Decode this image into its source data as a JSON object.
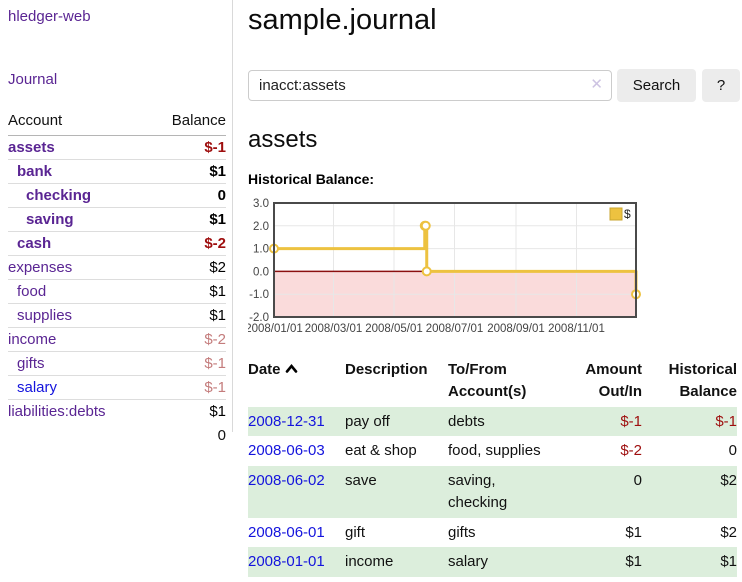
{
  "app_title": "hledger-web",
  "nav": {
    "journal_label": "Journal"
  },
  "colors": {
    "link_purple": "#5a2593",
    "link_blue": "#1414dd",
    "negative_strong": "#9e0e0e",
    "negative_faded": "#c47c7c",
    "row_stripe_green": "#dceedc",
    "button_bg": "#ececec",
    "chart_line_gold": "#edc240"
  },
  "sidebar": {
    "columns": {
      "account": "Account",
      "balance": "Balance"
    },
    "accounts": [
      {
        "name": "assets",
        "balance": "$-1",
        "indent": 1,
        "bold": true,
        "balance_tone": "neg"
      },
      {
        "name": "bank",
        "balance": "$1",
        "indent": 2,
        "bold": true,
        "balance_tone": ""
      },
      {
        "name": "checking",
        "balance": "0",
        "indent": 3,
        "bold": true,
        "balance_tone": ""
      },
      {
        "name": "saving",
        "balance": "$1",
        "indent": 3,
        "bold": true,
        "balance_tone": ""
      },
      {
        "name": "cash",
        "balance": "$-2",
        "indent": 2,
        "bold": true,
        "balance_tone": "neg"
      },
      {
        "name": "expenses",
        "balance": "$2",
        "indent": 1,
        "bold": false,
        "balance_tone": ""
      },
      {
        "name": "food",
        "balance": "$1",
        "indent": 2,
        "bold": false,
        "balance_tone": ""
      },
      {
        "name": "supplies",
        "balance": "$1",
        "indent": 2,
        "bold": false,
        "balance_tone": ""
      },
      {
        "name": "income",
        "balance": "$-2",
        "indent": 1,
        "bold": false,
        "balance_tone": "negfade"
      },
      {
        "name": "gifts",
        "balance": "$-1",
        "indent": 2,
        "bold": false,
        "balance_tone": "negfade"
      },
      {
        "name": "salary",
        "balance": "$-1",
        "indent": 2,
        "bold": false,
        "balance_tone": "negfade",
        "link_tone": "blue"
      },
      {
        "name": "liabilities:debts",
        "balance": "$1",
        "indent": 1,
        "bold": false,
        "balance_tone": ""
      }
    ],
    "total": "0"
  },
  "header": {
    "title": "sample.journal"
  },
  "search": {
    "value": "inacct:assets",
    "clear_icon": "✕",
    "button_label": "Search",
    "help_label": "?"
  },
  "account_page": {
    "title": "assets",
    "chart_label": "Historical Balance:"
  },
  "chart_data": {
    "type": "line",
    "title": "Historical Balance:",
    "step": true,
    "series": [
      {
        "name": "$",
        "color": "#edc240",
        "points": [
          [
            "2008-01-01",
            1
          ],
          [
            "2008-06-01",
            2
          ],
          [
            "2008-06-02",
            2
          ],
          [
            "2008-06-03",
            0
          ],
          [
            "2008-12-31",
            -1
          ]
        ]
      }
    ],
    "x_ticks": [
      "2008/01/01",
      "2008/03/01",
      "2008/05/01",
      "2008/07/01",
      "2008/09/01",
      "2008/11/01"
    ],
    "x_range": [
      "2008-01-01",
      "2008-12-31"
    ],
    "y_ticks": [
      3.0,
      2.0,
      1.0,
      0.0,
      -1.0,
      -2.0
    ],
    "ylim": [
      -2,
      3
    ],
    "grid": true,
    "legend_position": "top-right",
    "negative_region_fill": "#fadbdb",
    "zero_line_color": "#8b1010"
  },
  "register": {
    "columns": {
      "date": "Date",
      "description": "Description",
      "accounts": "To/From Account(s)",
      "amount": "Amount Out/In",
      "balance": "Historical Balance"
    },
    "sort": {
      "column": "date",
      "direction": "ascending"
    },
    "rows": [
      {
        "date": "2008-12-31",
        "description": "pay off",
        "accounts": "debts",
        "amount": "$-1",
        "amount_negative": true,
        "balance": "$-1",
        "balance_negative": true
      },
      {
        "date": "2008-06-03",
        "description": "eat & shop",
        "accounts": "food, supplies",
        "amount": "$-2",
        "amount_negative": true,
        "balance": "0",
        "balance_negative": false
      },
      {
        "date": "2008-06-02",
        "description": "save",
        "accounts": "saving, checking",
        "amount": "0",
        "amount_negative": false,
        "balance": "$2",
        "balance_negative": false
      },
      {
        "date": "2008-06-01",
        "description": "gift",
        "accounts": "gifts",
        "amount": "$1",
        "amount_negative": false,
        "balance": "$2",
        "balance_negative": false
      },
      {
        "date": "2008-01-01",
        "description": "income",
        "accounts": "salary",
        "amount": "$1",
        "amount_negative": false,
        "balance": "$1",
        "balance_negative": false
      }
    ]
  }
}
